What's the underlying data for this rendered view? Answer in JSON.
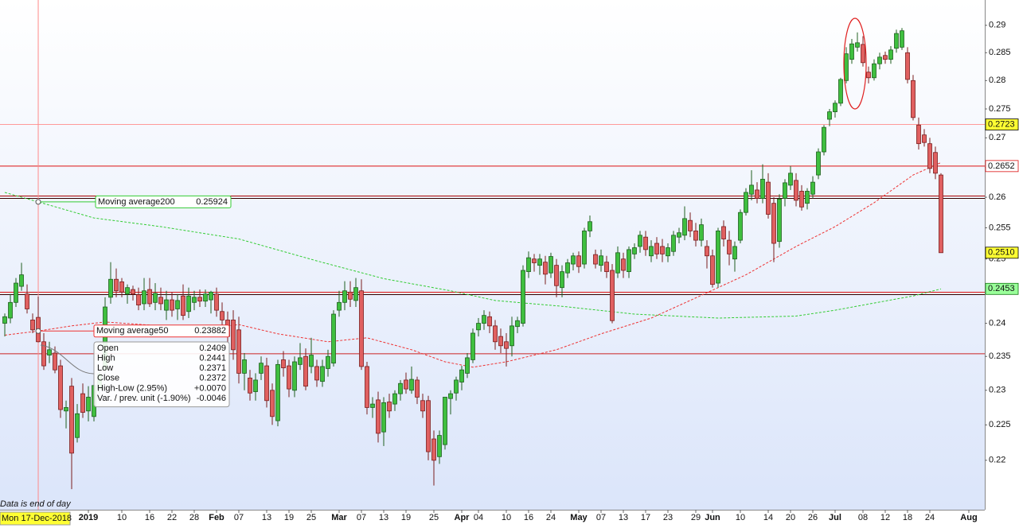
{
  "chart_data": {
    "type": "candlestick",
    "log": true,
    "ylim": [
      0.2132,
      0.2947
    ],
    "yticks": [
      0.22,
      0.225,
      0.23,
      0.235,
      0.24,
      0.245,
      0.25,
      0.255,
      0.26,
      0.265,
      0.27,
      0.275,
      0.28,
      0.285,
      0.29
    ],
    "xlim": [
      -0.86,
      175.86
    ],
    "xticks": [
      {
        "value": 15,
        "label": "2019"
      },
      {
        "value": 21,
        "label": "10"
      },
      {
        "value": 26,
        "label": "16"
      },
      {
        "value": 30,
        "label": "22"
      },
      {
        "value": 34,
        "label": "28"
      },
      {
        "value": 38,
        "label": "Feb"
      },
      {
        "value": 42,
        "label": "07"
      },
      {
        "value": 47,
        "label": "13"
      },
      {
        "value": 51,
        "label": "19"
      },
      {
        "value": 55,
        "label": "25"
      },
      {
        "value": 60,
        "label": "Mar"
      },
      {
        "value": 64,
        "label": "07"
      },
      {
        "value": 68,
        "label": "13"
      },
      {
        "value": 72,
        "label": "19"
      },
      {
        "value": 77,
        "label": "25"
      },
      {
        "value": 82,
        "label": "Apr"
      },
      {
        "value": 85,
        "label": "04"
      },
      {
        "value": 90,
        "label": "10"
      },
      {
        "value": 94,
        "label": "16"
      },
      {
        "value": 98,
        "label": "24"
      },
      {
        "value": 103,
        "label": "May"
      },
      {
        "value": 107,
        "label": "07"
      },
      {
        "value": 111,
        "label": "13"
      },
      {
        "value": 115,
        "label": "17"
      },
      {
        "value": 119,
        "label": "23"
      },
      {
        "value": 124,
        "label": "29"
      },
      {
        "value": 127,
        "label": "Jun"
      },
      {
        "value": 132,
        "label": "10"
      },
      {
        "value": 137,
        "label": "14"
      },
      {
        "value": 141,
        "label": "20"
      },
      {
        "value": 145,
        "label": "26"
      },
      {
        "value": 149,
        "label": "Jul"
      },
      {
        "value": 154,
        "label": "08"
      },
      {
        "value": 158,
        "label": "12"
      },
      {
        "value": 162,
        "label": "18"
      },
      {
        "value": 166,
        "label": "24"
      },
      {
        "value": 173,
        "label": "Aug"
      }
    ],
    "up_color": "#3fbf3f",
    "down_color": "#e06060",
    "ohlc": [
      [
        0.24,
        0.2415,
        0.238,
        0.241
      ],
      [
        0.2408,
        0.2445,
        0.24,
        0.2432
      ],
      [
        0.2432,
        0.247,
        0.2425,
        0.2462
      ],
      [
        0.2457,
        0.2494,
        0.245,
        0.2475
      ],
      [
        0.2445,
        0.246,
        0.2415,
        0.2422
      ],
      [
        0.2405,
        0.2415,
        0.2385,
        0.239
      ],
      [
        0.2409,
        0.2441,
        0.2371,
        0.2372
      ],
      [
        0.2372,
        0.2385,
        0.233,
        0.2336
      ],
      [
        0.2352,
        0.2372,
        0.234,
        0.236
      ],
      [
        0.2355,
        0.2365,
        0.2325,
        0.233
      ],
      [
        0.2336,
        0.2345,
        0.226,
        0.2272
      ],
      [
        0.227,
        0.2285,
        0.2245,
        0.2275
      ],
      [
        0.2306,
        0.2318,
        0.216,
        0.221
      ],
      [
        0.2232,
        0.228,
        0.2225,
        0.2266
      ],
      [
        0.2295,
        0.231,
        0.226,
        0.2268
      ],
      [
        0.227,
        0.2306,
        0.2255,
        0.229
      ],
      [
        0.2262,
        0.2312,
        0.2255,
        0.2307
      ],
      [
        0.2302,
        0.233,
        0.2295,
        0.2324
      ],
      [
        0.233,
        0.244,
        0.2325,
        0.2425
      ],
      [
        0.244,
        0.2495,
        0.243,
        0.2468
      ],
      [
        0.2468,
        0.2485,
        0.244,
        0.245
      ],
      [
        0.2464,
        0.247,
        0.244,
        0.2448
      ],
      [
        0.2445,
        0.246,
        0.243,
        0.2455
      ],
      [
        0.2452,
        0.2458,
        0.2435,
        0.2445
      ],
      [
        0.2444,
        0.2455,
        0.242,
        0.2428
      ],
      [
        0.243,
        0.247,
        0.242,
        0.245
      ],
      [
        0.2452,
        0.247,
        0.2425,
        0.243
      ],
      [
        0.2432,
        0.2462,
        0.242,
        0.2446
      ],
      [
        0.244,
        0.2455,
        0.242,
        0.243
      ],
      [
        0.242,
        0.245,
        0.2405,
        0.2436
      ],
      [
        0.2436,
        0.2448,
        0.241,
        0.242
      ],
      [
        0.2422,
        0.2445,
        0.2405,
        0.2435
      ],
      [
        0.2442,
        0.246,
        0.2405,
        0.2412
      ],
      [
        0.2418,
        0.2455,
        0.2408,
        0.2442
      ],
      [
        0.2432,
        0.245,
        0.242,
        0.244
      ],
      [
        0.244,
        0.2452,
        0.2425,
        0.2434
      ],
      [
        0.2434,
        0.2452,
        0.2425,
        0.2445
      ],
      [
        0.2436,
        0.245,
        0.2415,
        0.2448
      ],
      [
        0.2445,
        0.2455,
        0.241,
        0.242
      ],
      [
        0.2418,
        0.2432,
        0.2395,
        0.2405
      ],
      [
        0.2405,
        0.2418,
        0.237,
        0.238
      ],
      [
        0.2405,
        0.242,
        0.2345,
        0.236
      ],
      [
        0.239,
        0.241,
        0.231,
        0.2325
      ],
      [
        0.2325,
        0.2355,
        0.23,
        0.2345
      ],
      [
        0.2318,
        0.233,
        0.2285,
        0.2296
      ],
      [
        0.2298,
        0.2325,
        0.2285,
        0.2315
      ],
      [
        0.2325,
        0.235,
        0.2315,
        0.234
      ],
      [
        0.2336,
        0.2348,
        0.2275,
        0.2285
      ],
      [
        0.23,
        0.231,
        0.225,
        0.2262
      ],
      [
        0.2256,
        0.2345,
        0.2248,
        0.2338
      ],
      [
        0.2345,
        0.2358,
        0.232,
        0.2333
      ],
      [
        0.2336,
        0.2345,
        0.229,
        0.2302
      ],
      [
        0.23,
        0.235,
        0.229,
        0.2342
      ],
      [
        0.2338,
        0.237,
        0.233,
        0.2348
      ],
      [
        0.235,
        0.2362,
        0.23,
        0.2306
      ],
      [
        0.2335,
        0.2378,
        0.2325,
        0.2352
      ],
      [
        0.2335,
        0.2345,
        0.2305,
        0.2315
      ],
      [
        0.2313,
        0.2345,
        0.2305,
        0.2335
      ],
      [
        0.2332,
        0.236,
        0.232,
        0.235
      ],
      [
        0.234,
        0.242,
        0.2335,
        0.2414
      ],
      [
        0.242,
        0.245,
        0.241,
        0.2432
      ],
      [
        0.2432,
        0.2465,
        0.242,
        0.245
      ],
      [
        0.2448,
        0.2465,
        0.2425,
        0.2437
      ],
      [
        0.2435,
        0.247,
        0.2425,
        0.2455
      ],
      [
        0.245,
        0.2468,
        0.233,
        0.2335
      ],
      [
        0.2335,
        0.2342,
        0.2265,
        0.2275
      ],
      [
        0.2275,
        0.229,
        0.226,
        0.228
      ],
      [
        0.2286,
        0.2298,
        0.2225,
        0.2238
      ],
      [
        0.224,
        0.229,
        0.222,
        0.2282
      ],
      [
        0.2283,
        0.2295,
        0.226,
        0.227
      ],
      [
        0.228,
        0.23,
        0.227,
        0.2295
      ],
      [
        0.2295,
        0.2315,
        0.2285,
        0.231
      ],
      [
        0.2315,
        0.2326,
        0.2295,
        0.2302
      ],
      [
        0.23,
        0.2335,
        0.2295,
        0.2316
      ],
      [
        0.2315,
        0.232,
        0.228,
        0.229
      ],
      [
        0.2285,
        0.2295,
        0.226,
        0.227
      ],
      [
        0.2285,
        0.2292,
        0.22,
        0.2212
      ],
      [
        0.223,
        0.2242,
        0.2165,
        0.22
      ],
      [
        0.2205,
        0.2242,
        0.2195,
        0.2235
      ],
      [
        0.2222,
        0.229,
        0.2215,
        0.229
      ],
      [
        0.2288,
        0.23,
        0.2265,
        0.2295
      ],
      [
        0.2296,
        0.232,
        0.2285,
        0.2315
      ],
      [
        0.2312,
        0.2336,
        0.23,
        0.233
      ],
      [
        0.2325,
        0.2355,
        0.2318,
        0.2348
      ],
      [
        0.2345,
        0.2392,
        0.234,
        0.2385
      ],
      [
        0.239,
        0.2408,
        0.238,
        0.24
      ],
      [
        0.24,
        0.242,
        0.239,
        0.2412
      ],
      [
        0.241,
        0.2418,
        0.2385,
        0.2396
      ],
      [
        0.2396,
        0.2405,
        0.236,
        0.2372
      ],
      [
        0.238,
        0.2392,
        0.2355,
        0.2366
      ],
      [
        0.2372,
        0.2385,
        0.2335,
        0.2362
      ],
      [
        0.2366,
        0.241,
        0.235,
        0.2396
      ],
      [
        0.2395,
        0.241,
        0.2385,
        0.2404
      ],
      [
        0.24,
        0.249,
        0.2395,
        0.2482
      ],
      [
        0.248,
        0.2512,
        0.247,
        0.2502
      ],
      [
        0.25,
        0.2508,
        0.248,
        0.2494
      ],
      [
        0.249,
        0.2508,
        0.2475,
        0.25
      ],
      [
        0.2495,
        0.2505,
        0.246,
        0.2476
      ],
      [
        0.2478,
        0.251,
        0.247,
        0.2504
      ],
      [
        0.249,
        0.25,
        0.244,
        0.2458
      ],
      [
        0.2455,
        0.249,
        0.244,
        0.248
      ],
      [
        0.2478,
        0.25,
        0.247,
        0.2494
      ],
      [
        0.2492,
        0.251,
        0.2482,
        0.2505
      ],
      [
        0.2505,
        0.2512,
        0.2478,
        0.2488
      ],
      [
        0.2492,
        0.255,
        0.2485,
        0.2545
      ],
      [
        0.2545,
        0.257,
        0.2535,
        0.256
      ],
      [
        0.2507,
        0.2515,
        0.2485,
        0.2492
      ],
      [
        0.249,
        0.2515,
        0.248,
        0.2505
      ],
      [
        0.2495,
        0.2505,
        0.247,
        0.248
      ],
      [
        0.2482,
        0.2492,
        0.24,
        0.2404
      ],
      [
        0.2478,
        0.252,
        0.247,
        0.251
      ],
      [
        0.25,
        0.251,
        0.247,
        0.2482
      ],
      [
        0.248,
        0.252,
        0.247,
        0.2515
      ],
      [
        0.2508,
        0.2525,
        0.25,
        0.2518
      ],
      [
        0.252,
        0.2545,
        0.251,
        0.2538
      ],
      [
        0.2535,
        0.2545,
        0.2505,
        0.2515
      ],
      [
        0.2505,
        0.253,
        0.2495,
        0.252
      ],
      [
        0.2525,
        0.2535,
        0.25,
        0.2508
      ],
      [
        0.252,
        0.2532,
        0.2495,
        0.2508
      ],
      [
        0.2505,
        0.2525,
        0.2495,
        0.2518
      ],
      [
        0.2512,
        0.2545,
        0.2505,
        0.2538
      ],
      [
        0.2535,
        0.255,
        0.2525,
        0.2542
      ],
      [
        0.2538,
        0.2585,
        0.253,
        0.2565
      ],
      [
        0.2562,
        0.2575,
        0.2535,
        0.2545
      ],
      [
        0.2545,
        0.2558,
        0.252,
        0.253
      ],
      [
        0.253,
        0.2565,
        0.252,
        0.2555
      ],
      [
        0.252,
        0.253,
        0.2485,
        0.2505
      ],
      [
        0.2505,
        0.2515,
        0.2455,
        0.246
      ],
      [
        0.2462,
        0.255,
        0.2455,
        0.2545
      ],
      [
        0.2552,
        0.2562,
        0.252,
        0.2532
      ],
      [
        0.253,
        0.2545,
        0.249,
        0.2508
      ],
      [
        0.25,
        0.2528,
        0.248,
        0.252
      ],
      [
        0.253,
        0.258,
        0.2525,
        0.2575
      ],
      [
        0.2575,
        0.2615,
        0.257,
        0.2608
      ],
      [
        0.2605,
        0.2645,
        0.2595,
        0.262
      ],
      [
        0.2612,
        0.2625,
        0.259,
        0.2598
      ],
      [
        0.2598,
        0.2655,
        0.259,
        0.263
      ],
      [
        0.2625,
        0.264,
        0.2565,
        0.2572
      ],
      [
        0.259,
        0.26,
        0.2495,
        0.2525
      ],
      [
        0.2528,
        0.2605,
        0.2518,
        0.2597
      ],
      [
        0.2598,
        0.263,
        0.2585,
        0.2624
      ],
      [
        0.262,
        0.2652,
        0.2612,
        0.264
      ],
      [
        0.2628,
        0.264,
        0.2585,
        0.2595
      ],
      [
        0.261,
        0.262,
        0.2578,
        0.2584
      ],
      [
        0.259,
        0.2615,
        0.258,
        0.261
      ],
      [
        0.2605,
        0.2635,
        0.2598,
        0.2625
      ],
      [
        0.2637,
        0.2682,
        0.263,
        0.2676
      ],
      [
        0.2676,
        0.2722,
        0.267,
        0.2718
      ],
      [
        0.2732,
        0.275,
        0.272,
        0.2745
      ],
      [
        0.2745,
        0.2765,
        0.2735,
        0.276
      ],
      [
        0.276,
        0.2805,
        0.2755,
        0.2802
      ],
      [
        0.28,
        0.286,
        0.2795,
        0.2848
      ],
      [
        0.2838,
        0.2875,
        0.283,
        0.2866
      ],
      [
        0.286,
        0.2887,
        0.2852,
        0.2868
      ],
      [
        0.2865,
        0.288,
        0.2825,
        0.2832
      ],
      [
        0.2815,
        0.2825,
        0.2795,
        0.2805
      ],
      [
        0.2805,
        0.2838,
        0.28,
        0.283
      ],
      [
        0.283,
        0.285,
        0.282,
        0.2842
      ],
      [
        0.2845,
        0.2852,
        0.283,
        0.2838
      ],
      [
        0.2838,
        0.2862,
        0.283,
        0.2855
      ],
      [
        0.2858,
        0.2892,
        0.285,
        0.2885
      ],
      [
        0.286,
        0.2895,
        0.2855,
        0.289
      ],
      [
        0.285,
        0.286,
        0.2795,
        0.2802
      ],
      [
        0.28,
        0.281,
        0.273,
        0.2735
      ],
      [
        0.2722,
        0.2735,
        0.268,
        0.269
      ],
      [
        0.2705,
        0.2715,
        0.2685,
        0.2692
      ],
      [
        0.269,
        0.27,
        0.264,
        0.2648
      ],
      [
        0.2675,
        0.2685,
        0.263,
        0.264
      ],
      [
        0.2637,
        0.264,
        0.251,
        0.251
      ]
    ],
    "moving_averages": [
      {
        "name": "Moving average200",
        "color": "#33cc33",
        "value_label": 0.25924,
        "x": [
          0,
          6,
          16,
          28,
          42,
          56,
          68,
          80,
          88,
          100,
          113,
          128,
          142,
          149,
          156,
          163,
          168
        ],
        "values": [
          0.2608,
          0.25924,
          0.2566,
          0.2552,
          0.2532,
          0.2497,
          0.2469,
          0.245,
          0.2435,
          0.2426,
          0.2414,
          0.2408,
          0.2411,
          0.242,
          0.2431,
          0.2442,
          0.2453
        ]
      },
      {
        "name": "Moving average50",
        "color": "#ee3333",
        "value_label": 0.23882,
        "x": [
          0,
          6,
          12,
          18,
          28,
          38,
          42,
          49,
          58,
          65,
          73,
          79,
          84,
          90,
          99,
          107,
          116,
          124,
          133,
          142,
          149,
          156,
          163,
          168
        ],
        "values": [
          0.2382,
          0.23882,
          0.2396,
          0.2402,
          0.2396,
          0.2394,
          0.2398,
          0.2384,
          0.2372,
          0.2378,
          0.236,
          0.2342,
          0.2334,
          0.2342,
          0.236,
          0.2384,
          0.2408,
          0.2439,
          0.2475,
          0.252,
          0.2552,
          0.2591,
          0.2637,
          0.2658
        ]
      }
    ],
    "hlines": [
      {
        "value": 0.2723,
        "color": "#ff9a9a",
        "style": "single"
      },
      {
        "value": 0.2652,
        "color": "#dd1111",
        "style": "single"
      },
      {
        "value": 0.26,
        "color": "#aa0000",
        "style": "double"
      },
      {
        "value": 0.2446,
        "color": "#dd1111",
        "style": "double"
      },
      {
        "value": 0.2354,
        "color": "#cc2222",
        "style": "single"
      }
    ],
    "price_labels": [
      {
        "value": 0.2723,
        "label": "0.2723",
        "color": "#ffff33",
        "text_color": "#000000"
      },
      {
        "value": 0.2652,
        "label": "0.2652",
        "color": "#ffffff",
        "text_color": "#dd1111"
      },
      {
        "value": 0.251,
        "label": "0.2510",
        "color": "#ffff33",
        "text_color": "#000000"
      },
      {
        "value": 0.2453,
        "label": "0.2453",
        "color": "#99ff99",
        "text_color": "#117711"
      }
    ],
    "cursor_date": "Mon 17-Dec-2018",
    "tooltip": [
      [
        "Open"
      ],
      [
        "High"
      ],
      [
        "Low"
      ],
      [
        "Close"
      ],
      [
        "High-Low (2.95%)",
        "+0.0070"
      ],
      [
        "Var. / prev. unit (-1.90%)",
        "-0.0046"
      ]
    ],
    "footnote": "Data is end of day"
  }
}
